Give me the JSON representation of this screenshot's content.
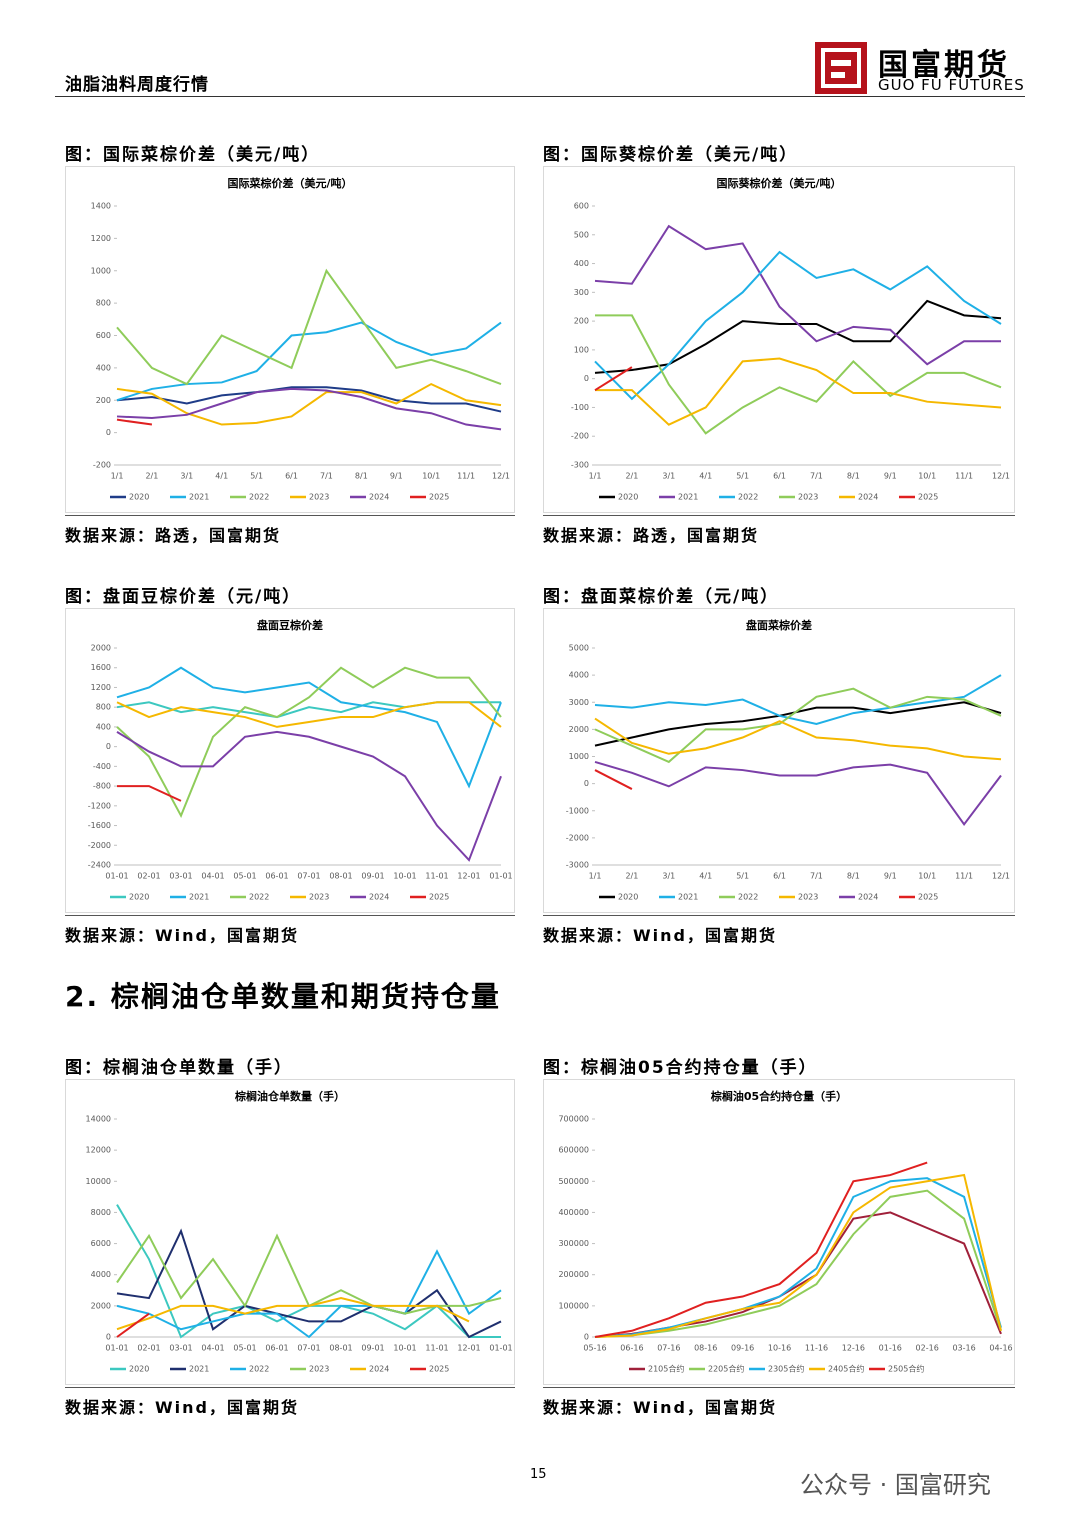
{
  "header": {
    "title": "油脂油料周度行情",
    "logo_cn": "国富期货",
    "logo_en": "GUO FU FUTURES"
  },
  "section_heading": "2. 棕榈油仓单数量和期货持仓量",
  "page_number": "15",
  "watermark": "公众号 · 国富研究",
  "chart_data": [
    {
      "type": "line",
      "panel_title": "图：国际菜棕价差（美元/吨）",
      "title": "国际菜棕价差（美元/吨）",
      "source": "数据来源：路透，国富期货",
      "categories": [
        "1/1",
        "2/1",
        "3/1",
        "4/1",
        "5/1",
        "6/1",
        "7/1",
        "8/1",
        "9/1",
        "10/1",
        "11/1",
        "12/1"
      ],
      "ylim": [
        -200,
        1400
      ],
      "yticks": [
        -200,
        0,
        200,
        400,
        600,
        800,
        1000,
        1200,
        1400
      ],
      "series": [
        {
          "name": "2020",
          "color": "#1f3c88",
          "values": [
            200,
            220,
            180,
            230,
            250,
            280,
            280,
            260,
            200,
            180,
            180,
            130
          ]
        },
        {
          "name": "2021",
          "color": "#1fb0e6",
          "values": [
            200,
            270,
            300,
            310,
            380,
            600,
            620,
            680,
            560,
            480,
            520,
            680
          ]
        },
        {
          "name": "2022",
          "color": "#8fcc5a",
          "values": [
            650,
            400,
            300,
            600,
            500,
            400,
            1000,
            700,
            400,
            450,
            380,
            300
          ]
        },
        {
          "name": "2023",
          "color": "#f5b800",
          "values": [
            270,
            240,
            120,
            50,
            60,
            100,
            250,
            250,
            180,
            300,
            200,
            170
          ]
        },
        {
          "name": "2024",
          "color": "#7b3fa8",
          "values": [
            100,
            90,
            110,
            180,
            250,
            270,
            260,
            220,
            150,
            120,
            50,
            20
          ]
        },
        {
          "name": "2025",
          "color": "#e02020",
          "values": [
            80,
            50,
            null,
            null,
            null,
            null,
            null,
            null,
            null,
            null,
            null,
            null
          ]
        }
      ]
    },
    {
      "type": "line",
      "panel_title": "图：国际葵棕价差（美元/吨）",
      "title": "国际葵棕价差（美元/吨）",
      "source": "数据来源：路透，国富期货",
      "categories": [
        "1/1",
        "2/1",
        "3/1",
        "4/1",
        "5/1",
        "6/1",
        "7/1",
        "8/1",
        "9/1",
        "10/1",
        "11/1",
        "12/1"
      ],
      "ylim": [
        -300,
        600
      ],
      "yticks": [
        -300,
        -200,
        -100,
        0,
        100,
        200,
        300,
        400,
        500,
        600
      ],
      "series": [
        {
          "name": "2020",
          "color": "#000000",
          "values": [
            20,
            30,
            50,
            120,
            200,
            190,
            190,
            130,
            130,
            270,
            220,
            210
          ]
        },
        {
          "name": "2021",
          "color": "#7b3fa8",
          "values": [
            340,
            330,
            530,
            450,
            470,
            250,
            130,
            180,
            170,
            50,
            130,
            130
          ]
        },
        {
          "name": "2022",
          "color": "#1fb0e6",
          "values": [
            60,
            -70,
            50,
            200,
            300,
            440,
            350,
            380,
            310,
            390,
            270,
            190
          ]
        },
        {
          "name": "2023",
          "color": "#8fcc5a",
          "values": [
            220,
            220,
            -20,
            -190,
            -100,
            -30,
            -80,
            60,
            -60,
            20,
            20,
            -30
          ]
        },
        {
          "name": "2024",
          "color": "#f5b800",
          "values": [
            -40,
            -40,
            -160,
            -100,
            60,
            70,
            30,
            -50,
            -50,
            -80,
            -90,
            -100
          ]
        },
        {
          "name": "2025",
          "color": "#e02020",
          "values": [
            -40,
            40,
            null,
            null,
            null,
            null,
            null,
            null,
            null,
            null,
            null,
            null
          ]
        }
      ]
    },
    {
      "type": "line",
      "panel_title": "图：盘面豆棕价差（元/吨）",
      "title": "盘面豆棕价差",
      "source": "数据来源：Wind，国富期货",
      "categories": [
        "01-01",
        "02-01",
        "03-01",
        "04-01",
        "05-01",
        "06-01",
        "07-01",
        "08-01",
        "09-01",
        "10-01",
        "11-01",
        "12-01",
        "01-01"
      ],
      "ylim": [
        -2400,
        2000
      ],
      "yticks": [
        -2400,
        -2000,
        -1600,
        -1200,
        -800,
        -400,
        0,
        400,
        800,
        1200,
        1600,
        2000
      ],
      "series": [
        {
          "name": "2020",
          "color": "#3cc8c0",
          "values": [
            800,
            900,
            700,
            800,
            700,
            600,
            800,
            700,
            900,
            800,
            900,
            900,
            900
          ]
        },
        {
          "name": "2021",
          "color": "#1fb0e6",
          "values": [
            1000,
            1200,
            1600,
            1200,
            1100,
            1200,
            1300,
            900,
            800,
            700,
            500,
            -800,
            900
          ]
        },
        {
          "name": "2022",
          "color": "#8fcc5a",
          "values": [
            400,
            -200,
            -1400,
            200,
            800,
            600,
            1000,
            1600,
            1200,
            1600,
            1400,
            1400,
            600
          ]
        },
        {
          "name": "2023",
          "color": "#f5b800",
          "values": [
            900,
            600,
            800,
            700,
            600,
            400,
            500,
            600,
            600,
            800,
            900,
            900,
            400
          ]
        },
        {
          "name": "2024",
          "color": "#7b3fa8",
          "values": [
            300,
            -100,
            -400,
            -400,
            200,
            300,
            200,
            0,
            -200,
            -600,
            -1600,
            -2300,
            -600
          ]
        },
        {
          "name": "2025",
          "color": "#e02020",
          "values": [
            -800,
            -800,
            -1100,
            null,
            null,
            null,
            null,
            null,
            null,
            null,
            null,
            null,
            null
          ]
        }
      ]
    },
    {
      "type": "line",
      "panel_title": "图：盘面菜棕价差（元/吨）",
      "title": "盘面菜棕价差",
      "source": "数据来源：Wind，国富期货",
      "categories": [
        "1/1",
        "2/1",
        "3/1",
        "4/1",
        "5/1",
        "6/1",
        "7/1",
        "8/1",
        "9/1",
        "10/1",
        "11/1",
        "12/1"
      ],
      "ylim": [
        -3000,
        5000
      ],
      "yticks": [
        -3000,
        -2000,
        -1000,
        0,
        1000,
        2000,
        3000,
        4000,
        5000
      ],
      "series": [
        {
          "name": "2020",
          "color": "#000000",
          "values": [
            1400,
            1700,
            2000,
            2200,
            2300,
            2500,
            2800,
            2800,
            2600,
            2800,
            3000,
            2600
          ]
        },
        {
          "name": "2021",
          "color": "#1fb0e6",
          "values": [
            2900,
            2800,
            3000,
            2900,
            3100,
            2500,
            2200,
            2600,
            2800,
            3000,
            3200,
            4000
          ]
        },
        {
          "name": "2022",
          "color": "#8fcc5a",
          "values": [
            2000,
            1400,
            800,
            2000,
            2000,
            2200,
            3200,
            3500,
            2800,
            3200,
            3100,
            2500
          ]
        },
        {
          "name": "2023",
          "color": "#f5b800",
          "values": [
            2400,
            1500,
            1100,
            1300,
            1700,
            2300,
            1700,
            1600,
            1400,
            1300,
            1000,
            900
          ]
        },
        {
          "name": "2024",
          "color": "#7b3fa8",
          "values": [
            800,
            400,
            -100,
            600,
            500,
            300,
            300,
            600,
            700,
            400,
            -1500,
            300
          ]
        },
        {
          "name": "2025",
          "color": "#e02020",
          "values": [
            500,
            -200,
            null,
            null,
            null,
            null,
            null,
            null,
            null,
            null,
            null,
            null
          ]
        }
      ]
    },
    {
      "type": "line",
      "panel_title": "图：棕榈油仓单数量（手）",
      "title": "棕榈油仓单数量（手）",
      "source": "数据来源：Wind，国富期货",
      "categories": [
        "01-01",
        "02-01",
        "03-01",
        "04-01",
        "05-01",
        "06-01",
        "07-01",
        "08-01",
        "09-01",
        "10-01",
        "11-01",
        "12-01",
        "01-01"
      ],
      "ylim": [
        0,
        14000
      ],
      "yticks": [
        0,
        2000,
        4000,
        6000,
        8000,
        10000,
        12000,
        14000
      ],
      "series": [
        {
          "name": "2020",
          "color": "#3cc8c0",
          "values": [
            8500,
            5000,
            0,
            1500,
            2000,
            1000,
            2000,
            2000,
            1500,
            500,
            2000,
            0,
            0
          ]
        },
        {
          "name": "2021",
          "color": "#1f2f6e",
          "values": [
            2800,
            2500,
            6800,
            500,
            2000,
            1500,
            1000,
            1000,
            2000,
            1500,
            3000,
            0,
            1000
          ]
        },
        {
          "name": "2022",
          "color": "#1fb0e6",
          "values": [
            2000,
            1500,
            500,
            1000,
            1500,
            1500,
            0,
            2000,
            2000,
            1500,
            5500,
            1500,
            3000
          ]
        },
        {
          "name": "2023",
          "color": "#8fcc5a",
          "values": [
            3500,
            6500,
            2500,
            5000,
            2000,
            6500,
            2000,
            3000,
            2000,
            1500,
            2000,
            2000,
            2500
          ]
        },
        {
          "name": "2024",
          "color": "#f5b800",
          "values": [
            500,
            1200,
            2000,
            2000,
            1500,
            2000,
            2000,
            2500,
            2000,
            2000,
            2000,
            1000,
            null
          ]
        },
        {
          "name": "2025",
          "color": "#e02020",
          "values": [
            0,
            1500,
            null,
            null,
            null,
            null,
            null,
            null,
            null,
            null,
            null,
            null,
            null
          ]
        }
      ]
    },
    {
      "type": "line",
      "panel_title": "图：棕榈油05合约持仓量（手）",
      "title": "棕榈油05合约持仓量（手）",
      "source": "数据来源：Wind，国富期货",
      "categories": [
        "05-16",
        "06-16",
        "07-16",
        "08-16",
        "09-16",
        "10-16",
        "11-16",
        "12-16",
        "01-16",
        "02-16",
        "03-16",
        "04-16"
      ],
      "ylim": [
        0,
        700000
      ],
      "yticks": [
        0,
        100000,
        200000,
        300000,
        400000,
        500000,
        600000,
        700000
      ],
      "series": [
        {
          "name": "2105合约",
          "color": "#a0203a",
          "values": [
            0,
            10000,
            30000,
            50000,
            80000,
            130000,
            200000,
            380000,
            400000,
            350000,
            300000,
            10000
          ]
        },
        {
          "name": "2205合约",
          "color": "#8fcc5a",
          "values": [
            0,
            5000,
            20000,
            40000,
            70000,
            100000,
            170000,
            330000,
            450000,
            470000,
            380000,
            20000
          ]
        },
        {
          "name": "2305合约",
          "color": "#1fb0e6",
          "values": [
            0,
            8000,
            30000,
            60000,
            90000,
            130000,
            220000,
            450000,
            500000,
            510000,
            450000,
            30000
          ]
        },
        {
          "name": "2405合约",
          "color": "#f5b800",
          "values": [
            0,
            5000,
            25000,
            60000,
            90000,
            110000,
            200000,
            400000,
            480000,
            500000,
            520000,
            20000
          ]
        },
        {
          "name": "2505合约",
          "color": "#e02020",
          "values": [
            0,
            20000,
            60000,
            110000,
            130000,
            170000,
            270000,
            500000,
            520000,
            560000,
            null,
            null
          ]
        }
      ]
    }
  ]
}
